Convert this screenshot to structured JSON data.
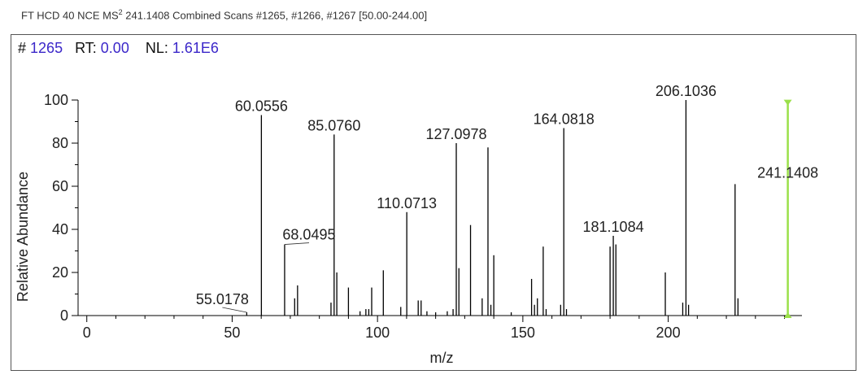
{
  "header": {
    "prefix": "FT HCD 40 NCE MS",
    "superscript": "2",
    "suffix": " 241.1408 Combined Scans #1265, #1266, #1267 [50.00-244.00]"
  },
  "info": {
    "scan_label": "#",
    "scan_value": "1265",
    "rt_label": "RT:",
    "rt_value": "0.00",
    "nl_label": "NL:",
    "nl_value": "1.61E6"
  },
  "chart_data": {
    "type": "bar",
    "xlabel": "m/z",
    "ylabel": "Relative Abundance",
    "xlim": [
      -3,
      246
    ],
    "ylim": [
      0,
      100
    ],
    "xticks": [
      0,
      50,
      100,
      150,
      200
    ],
    "yticks": [
      0,
      20,
      40,
      60,
      80,
      100
    ],
    "colors": {
      "peak": "#000000",
      "precursor": "#9be04a",
      "axis": "#000000"
    },
    "peaks": [
      {
        "x": 55.0178,
        "y": 1.5,
        "label": "55.0178"
      },
      {
        "x": 60.0556,
        "y": 93,
        "label": "60.0556"
      },
      {
        "x": 68.0495,
        "y": 33,
        "label": "68.0495"
      },
      {
        "x": 71.5,
        "y": 8
      },
      {
        "x": 72.5,
        "y": 14
      },
      {
        "x": 84.0,
        "y": 6
      },
      {
        "x": 85.076,
        "y": 84,
        "label": "85.0760"
      },
      {
        "x": 86.0,
        "y": 20
      },
      {
        "x": 90.0,
        "y": 13
      },
      {
        "x": 94.0,
        "y": 2
      },
      {
        "x": 96.0,
        "y": 3
      },
      {
        "x": 97.0,
        "y": 3
      },
      {
        "x": 98.0,
        "y": 13
      },
      {
        "x": 102.0,
        "y": 21
      },
      {
        "x": 108.0,
        "y": 4
      },
      {
        "x": 110.0713,
        "y": 48,
        "label": "110.0713"
      },
      {
        "x": 114.0,
        "y": 7
      },
      {
        "x": 115.0,
        "y": 7
      },
      {
        "x": 117.0,
        "y": 2
      },
      {
        "x": 120.0,
        "y": 1.5
      },
      {
        "x": 124.0,
        "y": 2
      },
      {
        "x": 126.0,
        "y": 3
      },
      {
        "x": 127.0978,
        "y": 80,
        "label": "127.0978"
      },
      {
        "x": 128.0,
        "y": 22
      },
      {
        "x": 132.0,
        "y": 42
      },
      {
        "x": 136.0,
        "y": 8
      },
      {
        "x": 138.0,
        "y": 78
      },
      {
        "x": 139.0,
        "y": 5
      },
      {
        "x": 140.0,
        "y": 28
      },
      {
        "x": 146.0,
        "y": 1.5
      },
      {
        "x": 153.0,
        "y": 17
      },
      {
        "x": 154.0,
        "y": 5
      },
      {
        "x": 155.0,
        "y": 8
      },
      {
        "x": 157.0,
        "y": 32
      },
      {
        "x": 158.0,
        "y": 3
      },
      {
        "x": 163.0,
        "y": 5
      },
      {
        "x": 164.0818,
        "y": 87,
        "label": "164.0818"
      },
      {
        "x": 165.0,
        "y": 3
      },
      {
        "x": 180.0,
        "y": 32
      },
      {
        "x": 181.1084,
        "y": 37,
        "label": "181.1084"
      },
      {
        "x": 182.0,
        "y": 33
      },
      {
        "x": 199.0,
        "y": 20
      },
      {
        "x": 205.0,
        "y": 6
      },
      {
        "x": 206.1036,
        "y": 100,
        "label": "206.1036"
      },
      {
        "x": 207.0,
        "y": 5
      },
      {
        "x": 223.0,
        "y": 61
      },
      {
        "x": 224.0,
        "y": 8
      }
    ],
    "precursor": {
      "x": 241.1408,
      "y": 99,
      "label": "241.1408"
    }
  }
}
